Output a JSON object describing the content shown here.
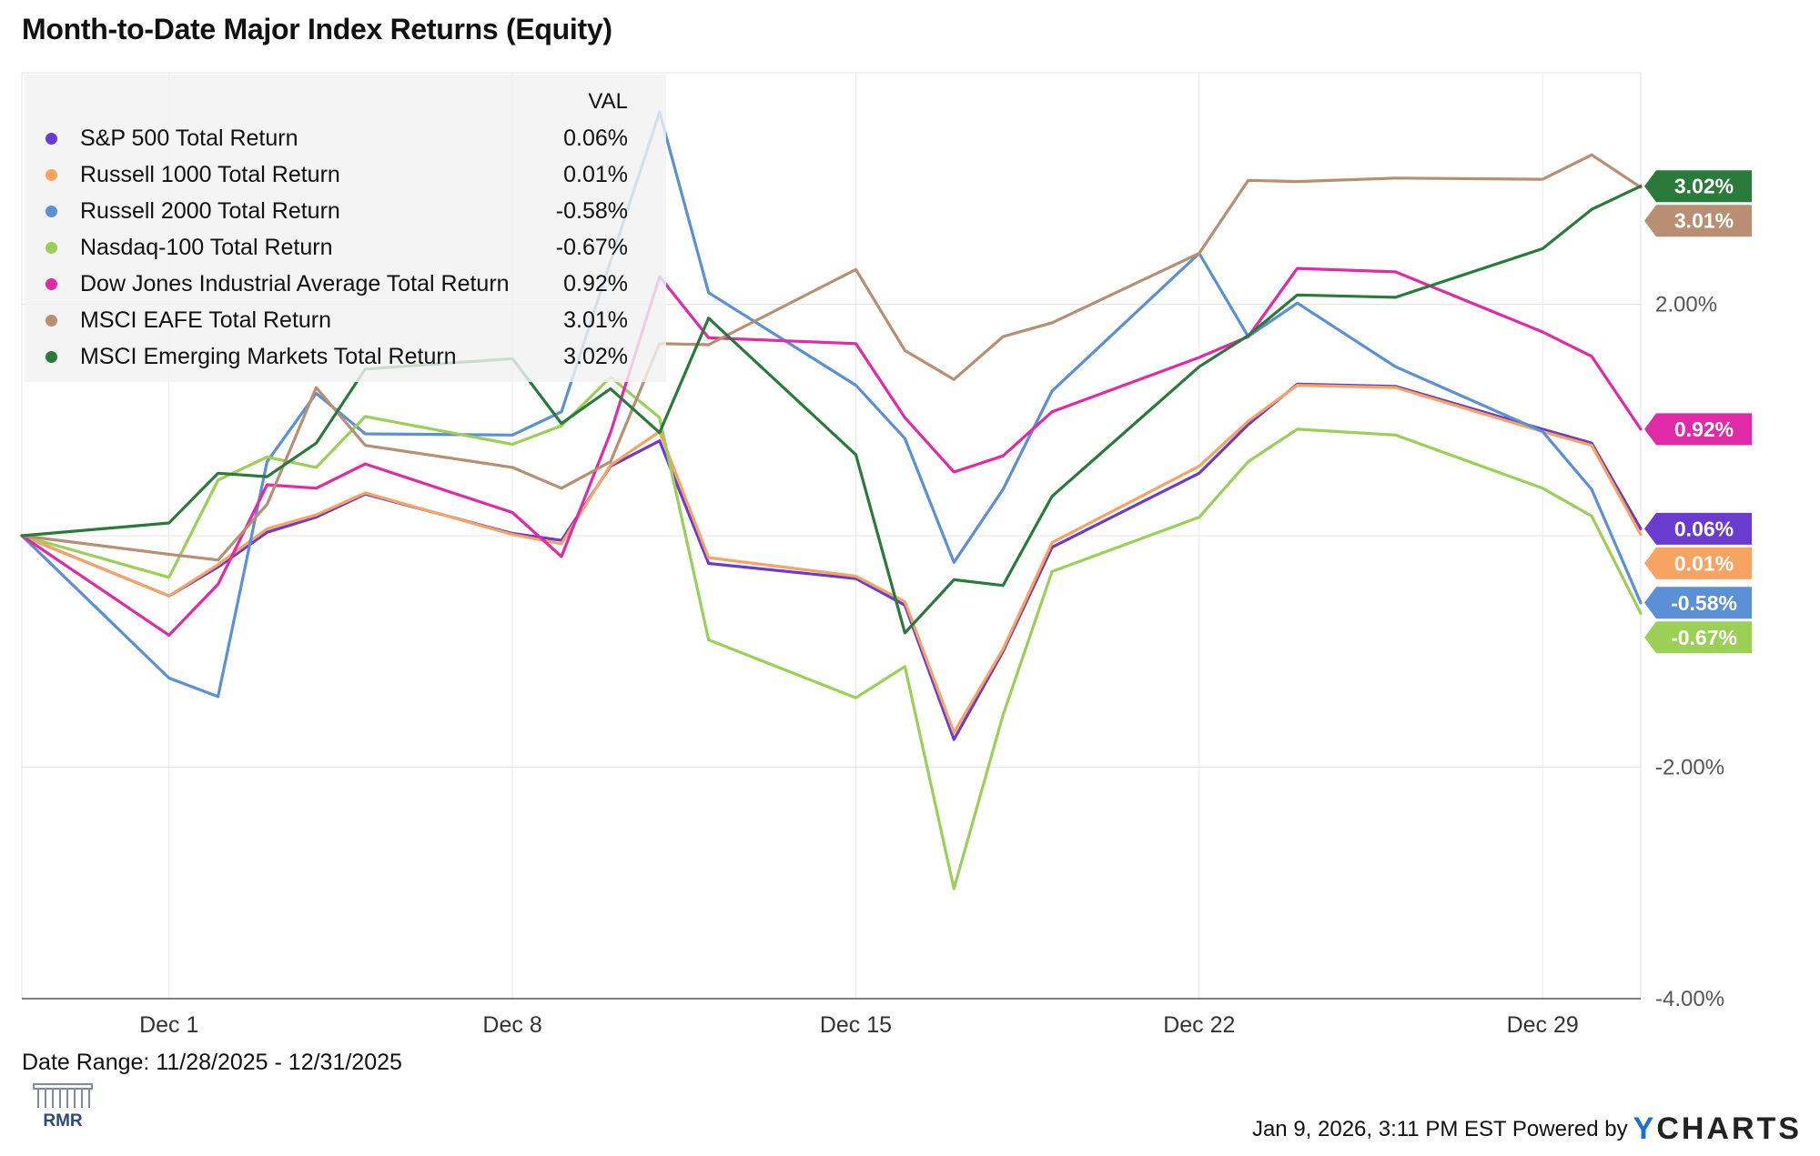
{
  "title": "Month-to-Date Major Index Returns (Equity)",
  "date_range": "Date Range: 11/28/2025 - 12/31/2025",
  "footer": {
    "timestamp": "Jan 9, 2026, 3:11 PM EST Powered by",
    "brand_y": "Y",
    "brand_rest": "CHARTS"
  },
  "logo_text": "RMR",
  "legend": {
    "header": "VAL"
  },
  "chart_data": {
    "type": "line",
    "title": "Month-to-Date Major Index Returns (Equity)",
    "x": [
      "2025-11-28",
      "2025-12-01",
      "2025-12-02",
      "2025-12-03",
      "2025-12-04",
      "2025-12-05",
      "2025-12-08",
      "2025-12-09",
      "2025-12-10",
      "2025-12-11",
      "2025-12-12",
      "2025-12-15",
      "2025-12-16",
      "2025-12-17",
      "2025-12-18",
      "2025-12-19",
      "2025-12-22",
      "2025-12-23",
      "2025-12-24",
      "2025-12-26",
      "2025-12-29",
      "2025-12-30",
      "2025-12-31"
    ],
    "x_ticks": [
      {
        "date": "2025-12-01",
        "label": "Dec 1"
      },
      {
        "date": "2025-12-08",
        "label": "Dec 8"
      },
      {
        "date": "2025-12-15",
        "label": "Dec 15"
      },
      {
        "date": "2025-12-22",
        "label": "Dec 22"
      },
      {
        "date": "2025-12-29",
        "label": "Dec 29"
      }
    ],
    "y_ticks": [
      {
        "value": 2.0,
        "label": "2.00%"
      },
      {
        "value": -2.0,
        "label": "-2.00%"
      },
      {
        "value": -4.0,
        "label": "-4.00%"
      }
    ],
    "ylim": [
      -4.0,
      4.0
    ],
    "grid": true,
    "legend_position": "top-left",
    "series": [
      {
        "name": "S&P 500 Total Return",
        "color": "#6a3bcf",
        "last_label": "0.06%",
        "label_color": "#6a3bcf",
        "values": [
          0.0,
          -0.52,
          -0.27,
          0.03,
          0.16,
          0.36,
          0.02,
          -0.04,
          0.6,
          0.82,
          -0.24,
          -0.37,
          -0.6,
          -1.76,
          -1.0,
          -0.1,
          0.54,
          0.96,
          1.31,
          1.29,
          0.92,
          0.8,
          0.06
        ]
      },
      {
        "name": "Russell 1000 Total Return",
        "color": "#f7a463",
        "last_label": "0.01%",
        "label_color": "#f7a463",
        "values": [
          0.0,
          -0.52,
          -0.25,
          0.06,
          0.18,
          0.37,
          0.01,
          -0.07,
          0.61,
          0.9,
          -0.19,
          -0.35,
          -0.57,
          -1.7,
          -0.98,
          -0.06,
          0.6,
          0.99,
          1.3,
          1.28,
          0.9,
          0.78,
          0.01
        ]
      },
      {
        "name": "Russell 2000 Total Return",
        "color": "#5b8fd6",
        "last_label": "-0.58%",
        "label_color": "#5b8fd6",
        "values": [
          0.0,
          -1.23,
          -1.39,
          0.64,
          1.23,
          0.88,
          0.87,
          1.07,
          2.37,
          3.66,
          2.1,
          1.3,
          0.84,
          -0.23,
          0.4,
          1.25,
          2.44,
          1.72,
          2.01,
          1.46,
          0.9,
          0.4,
          -0.58
        ]
      },
      {
        "name": "Nasdaq-100 Total Return",
        "color": "#9bcf56",
        "last_label": "-0.67%",
        "label_color": "#9bcf56",
        "values": [
          0.0,
          -0.36,
          0.48,
          0.68,
          0.59,
          1.03,
          0.79,
          0.95,
          1.37,
          1.02,
          -0.9,
          -1.4,
          -1.13,
          -3.05,
          -1.55,
          -0.31,
          0.16,
          0.64,
          0.92,
          0.87,
          0.41,
          0.17,
          -0.67
        ]
      },
      {
        "name": "Dow Jones Industrial Average Total Return",
        "color": "#e02aa8",
        "last_label": "0.92%",
        "label_color": "#e02aa8",
        "values": [
          0.0,
          -0.86,
          -0.42,
          0.44,
          0.41,
          0.62,
          0.2,
          -0.18,
          0.89,
          2.24,
          1.71,
          1.66,
          1.02,
          0.55,
          0.69,
          1.07,
          1.54,
          1.72,
          2.31,
          2.28,
          1.76,
          1.55,
          0.92
        ]
      },
      {
        "name": "MSCI EAFE Total Return",
        "color": "#b88f72",
        "last_label": "3.01%",
        "label_color": "#b88f72",
        "values": [
          0.0,
          -0.16,
          -0.21,
          0.27,
          1.28,
          0.78,
          0.59,
          0.41,
          0.64,
          1.66,
          1.65,
          2.3,
          1.6,
          1.35,
          1.72,
          1.84,
          2.44,
          3.07,
          3.06,
          3.09,
          3.08,
          3.29,
          3.01
        ]
      },
      {
        "name": "MSCI Emerging Markets Total Return",
        "color": "#2a7a3c",
        "last_label": "3.02%",
        "label_color": "#2a7a3c",
        "values": [
          0.0,
          0.11,
          0.54,
          0.51,
          0.8,
          1.44,
          1.53,
          0.97,
          1.27,
          0.89,
          1.88,
          0.7,
          -0.84,
          -0.38,
          -0.43,
          0.34,
          1.46,
          1.73,
          2.08,
          2.06,
          2.48,
          2.82,
          3.02
        ]
      }
    ]
  }
}
